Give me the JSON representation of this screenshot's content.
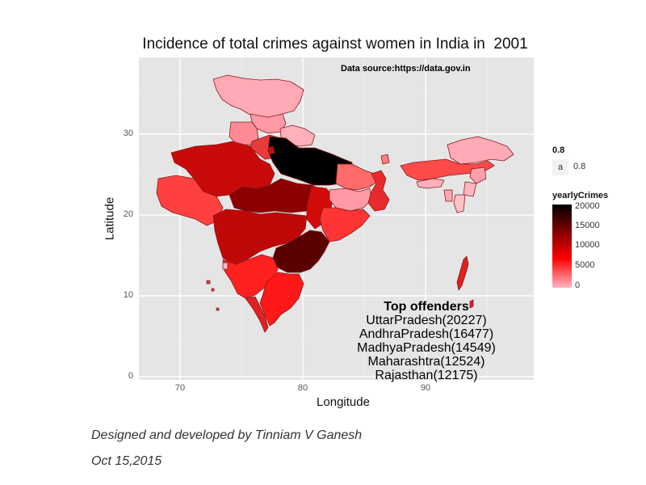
{
  "title": "Incidence of total crimes against women in India in  2001",
  "data_source": "Data source:https://data.gov.in",
  "axes": {
    "x_label": "Longitude",
    "y_label": "Latitude",
    "x_ticks": [
      "70",
      "80",
      "90"
    ],
    "y_ticks": [
      "30",
      "20",
      "10",
      "0"
    ]
  },
  "legend_alpha": {
    "title": "0.8",
    "key_glyph": "a",
    "label": "0.8"
  },
  "legend_fill": {
    "title": "yearlyCrimes",
    "ticks": [
      "20000",
      "15000",
      "10000",
      "5000",
      "0"
    ],
    "colors": {
      "high": "#000000",
      "mid_high": "#7a0000",
      "mid": "#ff0000",
      "low": "#ffb6c1"
    }
  },
  "top_offenders": {
    "heading": "Top offenders",
    "items": [
      "UttarPradesh(20227)",
      "AndhraPradesh(16477)",
      "MadhyaPradesh(14549)",
      "Maharashtra(12524)",
      "Rajasthan(12175)"
    ]
  },
  "credits": {
    "line1": "Designed and developed by Tinniam V Ganesh",
    "line2": "Oct 15,2015"
  },
  "chart_data": {
    "type": "choropleth",
    "fill_variable": "yearlyCrimes",
    "fill_range": [
      0,
      20000
    ],
    "x_range": [
      66.5,
      99
    ],
    "y_range": [
      -0.5,
      39.2
    ],
    "grid": true,
    "legend_placement": "right",
    "values": [
      {
        "state": "UttarPradesh",
        "yearlyCrimes": 20227
      },
      {
        "state": "AndhraPradesh",
        "yearlyCrimes": 16477
      },
      {
        "state": "MadhyaPradesh",
        "yearlyCrimes": 14549
      },
      {
        "state": "Maharashtra",
        "yearlyCrimes": 12524
      },
      {
        "state": "Rajasthan",
        "yearlyCrimes": 12175
      }
    ]
  }
}
